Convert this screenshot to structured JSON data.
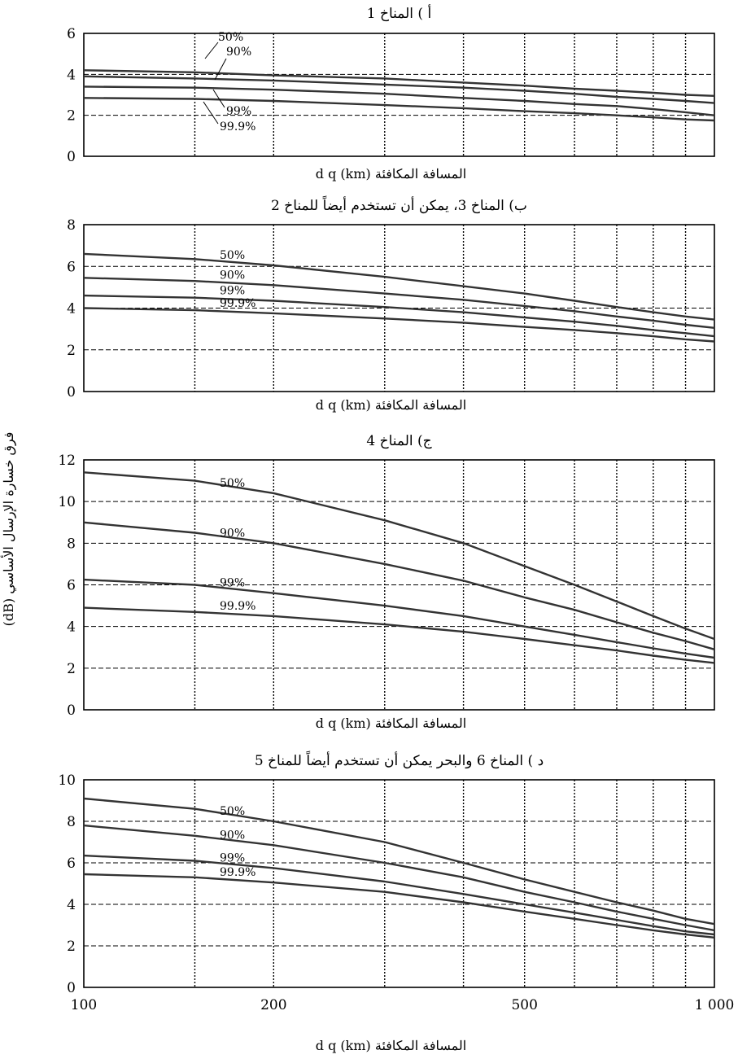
{
  "y_axis_label": "فرق خسارة الإرسال الأساسي (dB)",
  "chart_data": [
    {
      "type": "line",
      "title": "أ ) المناخ 1",
      "xlabel": "المسافة المكافئة d q (km)",
      "ylabel": "",
      "x_scale": "log",
      "xlim": [
        100,
        1000
      ],
      "ylim": [
        0,
        6
      ],
      "y_ticks": [
        0,
        2,
        4,
        6
      ],
      "x_ticks": [],
      "grid": true,
      "series": [
        {
          "name": "50%",
          "x": [
            100,
            150,
            200,
            300,
            400,
            500,
            600,
            700,
            800,
            900,
            1000
          ],
          "y": [
            4.2,
            4.1,
            3.95,
            3.8,
            3.6,
            3.45,
            3.3,
            3.2,
            3.1,
            3.0,
            2.95
          ]
        },
        {
          "name": "90%",
          "x": [
            100,
            150,
            200,
            300,
            400,
            500,
            600,
            700,
            800,
            900,
            1000
          ],
          "y": [
            3.9,
            3.8,
            3.7,
            3.5,
            3.35,
            3.2,
            3.05,
            2.9,
            2.8,
            2.7,
            2.6
          ]
        },
        {
          "name": "99%",
          "x": [
            100,
            150,
            200,
            300,
            400,
            500,
            600,
            700,
            800,
            900,
            1000
          ],
          "y": [
            3.4,
            3.35,
            3.25,
            3.05,
            2.85,
            2.7,
            2.55,
            2.45,
            2.3,
            2.15,
            2.0
          ]
        },
        {
          "name": "99.9%",
          "x": [
            100,
            150,
            200,
            300,
            400,
            500,
            600,
            700,
            800,
            900,
            1000
          ],
          "y": [
            2.85,
            2.8,
            2.7,
            2.5,
            2.35,
            2.2,
            2.1,
            2.0,
            1.9,
            1.8,
            1.75
          ]
        }
      ]
    },
    {
      "type": "line",
      "title": "ب) المناخ 3، يمكن أن تستخدم أيضاً للمناخ 2",
      "xlabel": "المسافة المكافئة d q (km)",
      "ylabel": "",
      "x_scale": "log",
      "xlim": [
        100,
        1000
      ],
      "ylim": [
        0,
        8
      ],
      "y_ticks": [
        0,
        2,
        4,
        6,
        8
      ],
      "x_ticks": [],
      "grid": true,
      "series": [
        {
          "name": "50%",
          "x": [
            100,
            150,
            200,
            300,
            400,
            500,
            600,
            700,
            800,
            900,
            1000
          ],
          "y": [
            6.6,
            6.35,
            6.05,
            5.5,
            5.05,
            4.7,
            4.35,
            4.05,
            3.8,
            3.6,
            3.45
          ]
        },
        {
          "name": "90%",
          "x": [
            100,
            150,
            200,
            300,
            400,
            500,
            600,
            700,
            800,
            900,
            1000
          ],
          "y": [
            5.45,
            5.3,
            5.1,
            4.7,
            4.4,
            4.1,
            3.85,
            3.6,
            3.4,
            3.2,
            3.05
          ]
        },
        {
          "name": "99%",
          "x": [
            100,
            150,
            200,
            300,
            400,
            500,
            600,
            700,
            800,
            900,
            1000
          ],
          "y": [
            4.6,
            4.5,
            4.35,
            4.05,
            3.8,
            3.55,
            3.35,
            3.15,
            2.95,
            2.8,
            2.65
          ]
        },
        {
          "name": "99.9%",
          "x": [
            100,
            150,
            200,
            300,
            400,
            500,
            600,
            700,
            800,
            900,
            1000
          ],
          "y": [
            4.0,
            3.9,
            3.75,
            3.5,
            3.3,
            3.1,
            2.95,
            2.8,
            2.65,
            2.5,
            2.4
          ]
        }
      ]
    },
    {
      "type": "line",
      "title": "ج) المناخ 4",
      "xlabel": "المسافة المكافئة d q (km)",
      "ylabel": "",
      "x_scale": "log",
      "xlim": [
        100,
        1000
      ],
      "ylim": [
        0,
        12
      ],
      "y_ticks": [
        0,
        2,
        4,
        6,
        8,
        10,
        12
      ],
      "x_ticks": [],
      "grid": true,
      "series": [
        {
          "name": "50%",
          "x": [
            100,
            150,
            200,
            300,
            400,
            500,
            600,
            700,
            800,
            900,
            1000
          ],
          "y": [
            11.4,
            11.0,
            10.4,
            9.1,
            8.0,
            6.9,
            6.0,
            5.2,
            4.5,
            3.9,
            3.4
          ]
        },
        {
          "name": "90%",
          "x": [
            100,
            150,
            200,
            300,
            400,
            500,
            600,
            700,
            800,
            900,
            1000
          ],
          "y": [
            9.0,
            8.5,
            8.0,
            7.0,
            6.2,
            5.4,
            4.8,
            4.2,
            3.7,
            3.3,
            2.9
          ]
        },
        {
          "name": "99%",
          "x": [
            100,
            150,
            200,
            300,
            400,
            500,
            600,
            700,
            800,
            900,
            1000
          ],
          "y": [
            6.25,
            6.0,
            5.6,
            5.0,
            4.5,
            4.0,
            3.6,
            3.25,
            2.95,
            2.7,
            2.5
          ]
        },
        {
          "name": "99.9%",
          "x": [
            100,
            150,
            200,
            300,
            400,
            500,
            600,
            700,
            800,
            900,
            1000
          ],
          "y": [
            4.9,
            4.7,
            4.5,
            4.1,
            3.75,
            3.4,
            3.1,
            2.85,
            2.6,
            2.4,
            2.25
          ]
        }
      ]
    },
    {
      "type": "line",
      "title": "د ) المناخ 6 والبحر يمكن أن تستخدم أيضاً للمناخ 5",
      "xlabel": "المسافة المكافئة d q (km)",
      "ylabel": "",
      "x_scale": "log",
      "xlim": [
        100,
        1000
      ],
      "ylim": [
        0,
        10
      ],
      "y_ticks": [
        0,
        2,
        4,
        6,
        8,
        10
      ],
      "x_ticks": [
        {
          "value": 100,
          "label": "100"
        },
        {
          "value": 200,
          "label": "200"
        },
        {
          "value": 500,
          "label": "500"
        },
        {
          "value": 1000,
          "label": "1 000"
        }
      ],
      "grid": true,
      "series": [
        {
          "name": "50%",
          "x": [
            100,
            150,
            200,
            300,
            400,
            500,
            600,
            700,
            800,
            900,
            1000
          ],
          "y": [
            9.1,
            8.6,
            8.0,
            7.0,
            6.0,
            5.2,
            4.6,
            4.1,
            3.7,
            3.3,
            3.05
          ]
        },
        {
          "name": "90%",
          "x": [
            100,
            150,
            200,
            300,
            400,
            500,
            600,
            700,
            800,
            900,
            1000
          ],
          "y": [
            7.8,
            7.3,
            6.85,
            6.0,
            5.3,
            4.6,
            4.1,
            3.65,
            3.3,
            3.0,
            2.75
          ]
        },
        {
          "name": "99%",
          "x": [
            100,
            150,
            200,
            300,
            400,
            500,
            600,
            700,
            800,
            900,
            1000
          ],
          "y": [
            6.35,
            6.1,
            5.75,
            5.1,
            4.5,
            4.0,
            3.6,
            3.25,
            2.95,
            2.7,
            2.55
          ]
        },
        {
          "name": "99.9%",
          "x": [
            100,
            150,
            200,
            300,
            400,
            500,
            600,
            700,
            800,
            900,
            1000
          ],
          "y": [
            5.45,
            5.3,
            5.05,
            4.6,
            4.1,
            3.65,
            3.3,
            3.0,
            2.75,
            2.55,
            2.4
          ]
        }
      ]
    }
  ]
}
